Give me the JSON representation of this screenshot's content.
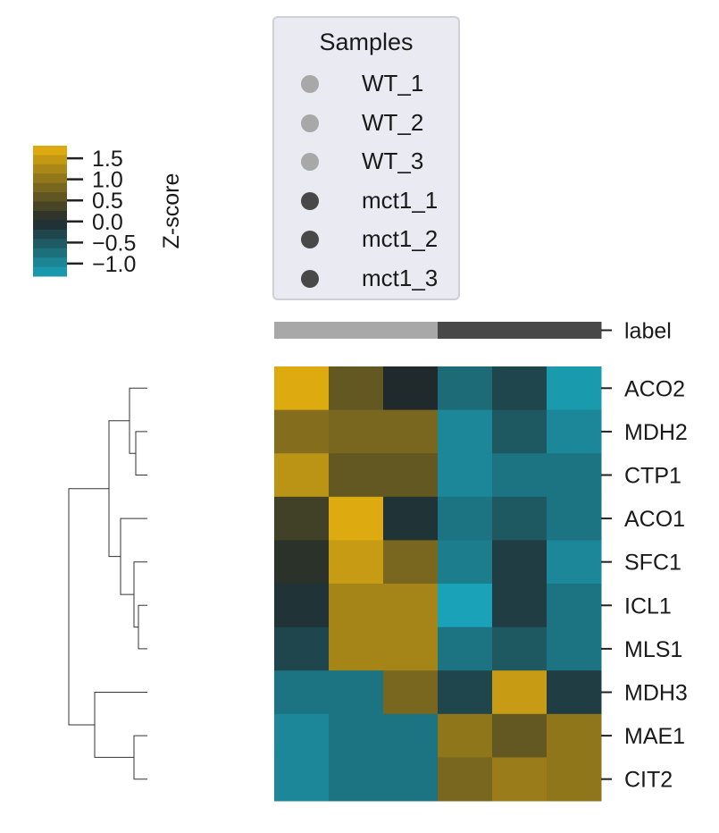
{
  "chart_data": {
    "type": "heatmap",
    "title": "",
    "rows": [
      "ACO2",
      "MDH2",
      "CTP1",
      "ACO1",
      "SFC1",
      "ICL1",
      "MLS1",
      "MDH3",
      "MAE1",
      "CIT2"
    ],
    "columns": [
      "WT_1",
      "WT_2",
      "WT_3",
      "mct1_1",
      "mct1_2",
      "mct1_3"
    ],
    "values": [
      [
        1.7,
        0.6,
        0.0,
        -0.7,
        -0.3,
        -1.2
      ],
      [
        0.9,
        0.8,
        0.8,
        -1.0,
        -0.5,
        -1.0
      ],
      [
        1.4,
        0.6,
        0.6,
        -1.0,
        -0.8,
        -0.8
      ],
      [
        0.3,
        1.7,
        -0.1,
        -0.8,
        -0.5,
        -0.8
      ],
      [
        0.1,
        1.5,
        0.8,
        -0.9,
        -0.2,
        -1.0
      ],
      [
        -0.1,
        1.2,
        1.2,
        -1.3,
        -0.2,
        -0.8
      ],
      [
        -0.3,
        1.2,
        1.2,
        -0.8,
        -0.5,
        -0.8
      ],
      [
        -0.8,
        -0.8,
        0.8,
        -0.3,
        1.5,
        -0.2
      ],
      [
        -1.0,
        -0.8,
        -0.8,
        1.0,
        0.6,
        1.0
      ],
      [
        -1.0,
        -0.8,
        -0.8,
        0.8,
        1.1,
        1.0
      ]
    ],
    "colorbar": {
      "label": "Z-score",
      "ticks": [
        1.5,
        1.0,
        0.5,
        0.0,
        -0.5,
        -1.0
      ],
      "tick_labels": [
        "1.5",
        "1.0",
        "0.5",
        "0.0",
        "−0.5",
        "−1.0"
      ],
      "range": [
        -1.3,
        1.8
      ],
      "low_color": "#1aa3b8",
      "mid_color": "#202a2c",
      "high_color": "#e8b20e"
    },
    "column_colors": {
      "label": "label",
      "colors": [
        "#a8a8a8",
        "#a8a8a8",
        "#a8a8a8",
        "#484848",
        "#484848",
        "#484848"
      ]
    },
    "legend": {
      "title": "Samples",
      "placement": "top",
      "items": [
        {
          "label": "WT_1",
          "color": "#a8a8a8"
        },
        {
          "label": "WT_2",
          "color": "#a8a8a8"
        },
        {
          "label": "WT_3",
          "color": "#a8a8a8"
        },
        {
          "label": "mct1_1",
          "color": "#484848"
        },
        {
          "label": "mct1_2",
          "color": "#484848"
        },
        {
          "label": "mct1_3",
          "color": "#484848"
        }
      ]
    },
    "row_dendrogram": true
  }
}
